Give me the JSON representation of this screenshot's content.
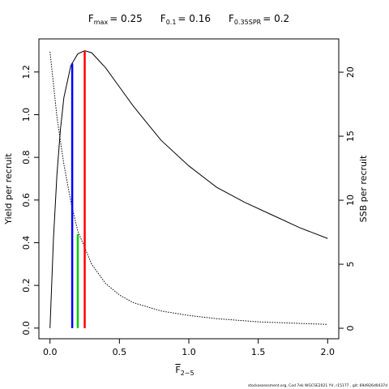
{
  "chart_data": {
    "type": "line",
    "title_parts": [
      {
        "symbol": "F",
        "subscript": "max",
        "value": 0.25,
        "value_label": "= 0.25",
        "color": "#ff0000",
        "top": 1.3
      },
      {
        "symbol": "F",
        "subscript": "0.1",
        "value": 0.16,
        "value_label": "= 0.16",
        "color": "#0000ff",
        "top": 1.24
      },
      {
        "symbol": "F",
        "subscript": "0.35SPR",
        "value": 0.2,
        "value_label": "= 0.2",
        "color": "#00cd00",
        "top": 0.44
      }
    ],
    "x_label": {
      "text": "F",
      "subscript": "2−5"
    },
    "y_label": "Yield per recruit",
    "y2_label": "SSB per recruit",
    "footer": "stockassessment.org, Cod 7ek WGCSE2021 YV, r15177 , git: 69d926d0437d",
    "series": [
      {
        "name": "Yield per recruit",
        "color": "#000000",
        "style": "solid",
        "x": [
          0,
          0.025,
          0.05,
          0.075,
          0.1,
          0.15,
          0.2,
          0.25,
          0.3,
          0.4,
          0.5,
          0.6,
          0.7,
          0.8,
          1.0,
          1.2,
          1.4,
          1.6,
          1.8,
          2.0
        ],
        "values": [
          0,
          0.42,
          0.72,
          0.93,
          1.08,
          1.23,
          1.285,
          1.3,
          1.29,
          1.22,
          1.13,
          1.04,
          0.96,
          0.88,
          0.76,
          0.66,
          0.59,
          0.53,
          0.47,
          0.42
        ]
      },
      {
        "name": "SSB per recruit",
        "color": "#000000",
        "style": "dotted",
        "axis": "y2",
        "x": [
          0,
          0.05,
          0.1,
          0.15,
          0.2,
          0.3,
          0.4,
          0.5,
          0.6,
          0.8,
          1.0,
          1.2,
          1.5,
          2.0
        ],
        "values": [
          21.6,
          16.5,
          12.8,
          9.9,
          7.6,
          5.0,
          3.5,
          2.6,
          2.0,
          1.35,
          1.0,
          0.75,
          0.5,
          0.3
        ]
      }
    ],
    "xlim": [
      -0.08,
      2.08
    ],
    "xticks": [
      {
        "value": 0,
        "label": "0.0"
      },
      0.5,
      {
        "value": 1,
        "label": "1.0"
      },
      1.5,
      {
        "value": 2,
        "label": "2.0"
      }
    ],
    "ylim": [
      -0.05,
      1.355
    ],
    "yticks": [
      {
        "value": 0,
        "label": "0.0"
      },
      0.2,
      0.4,
      0.6,
      0.8,
      {
        "value": 1,
        "label": "1.0"
      },
      1.2
    ],
    "y2lim": [
      -0.82,
      22.6
    ],
    "y2ticks": [
      0,
      5,
      10,
      15,
      20
    ]
  }
}
